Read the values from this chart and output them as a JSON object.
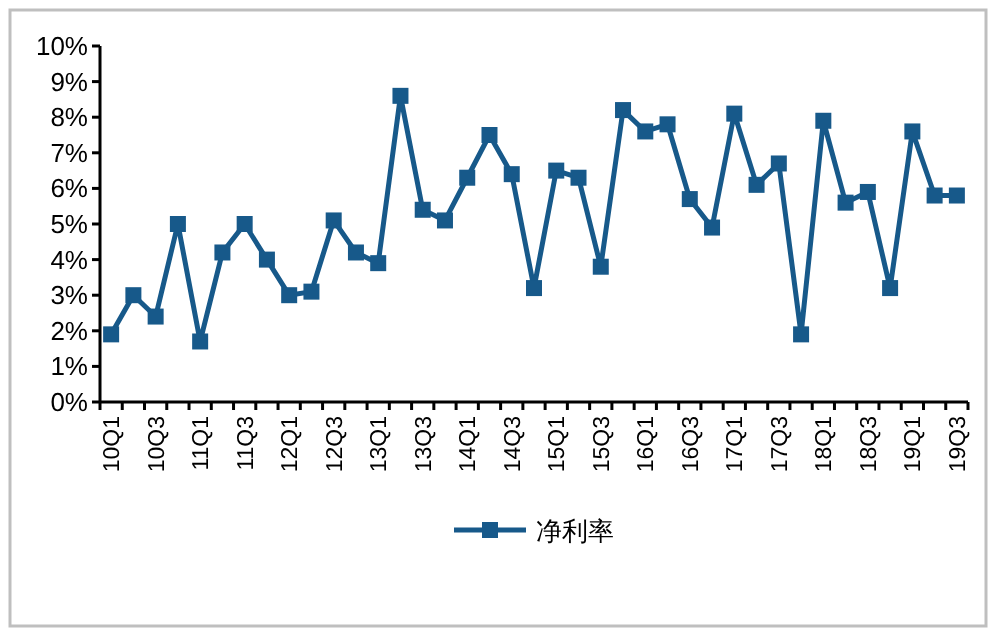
{
  "chart_data": {
    "type": "line",
    "categories": [
      "10Q1",
      null,
      "10Q3",
      null,
      "11Q1",
      null,
      "11Q3",
      null,
      "12Q1",
      null,
      "12Q3",
      null,
      "13Q1",
      null,
      "13Q3",
      null,
      "14Q1",
      null,
      "14Q3",
      null,
      "15Q1",
      null,
      "15Q3",
      null,
      "16Q1",
      null,
      "16Q3",
      null,
      "17Q1",
      null,
      "17Q3",
      null,
      "18Q1",
      null,
      "18Q3",
      null,
      "19Q1",
      null,
      "19Q3"
    ],
    "series": [
      {
        "name": "净利率",
        "color": "#17598a",
        "values": [
          1.9,
          3.0,
          2.4,
          5.0,
          1.7,
          4.2,
          5.0,
          4.0,
          3.0,
          3.1,
          5.1,
          4.2,
          3.9,
          8.6,
          5.4,
          5.1,
          6.3,
          7.5,
          6.4,
          3.2,
          6.5,
          6.3,
          3.8,
          8.2,
          7.6,
          7.8,
          5.7,
          4.9,
          8.1,
          6.1,
          6.7,
          1.9,
          7.9,
          5.6,
          5.9,
          3.2,
          7.6,
          5.8,
          5.8
        ]
      }
    ],
    "ylim": [
      0,
      10
    ],
    "yticks": [
      {
        "value": 0,
        "label": "0%"
      },
      {
        "value": 1,
        "label": "1%"
      },
      {
        "value": 2,
        "label": "2%"
      },
      {
        "value": 3,
        "label": "3%"
      },
      {
        "value": 4,
        "label": "4%"
      },
      {
        "value": 5,
        "label": "5%"
      },
      {
        "value": 6,
        "label": "6%"
      },
      {
        "value": 7,
        "label": "7%"
      },
      {
        "value": 8,
        "label": "8%"
      },
      {
        "value": 9,
        "label": "9%"
      },
      {
        "value": 10,
        "label": "10%"
      }
    ],
    "grid": false,
    "legend": "bottom",
    "marker": "square",
    "line_style": "solid"
  }
}
